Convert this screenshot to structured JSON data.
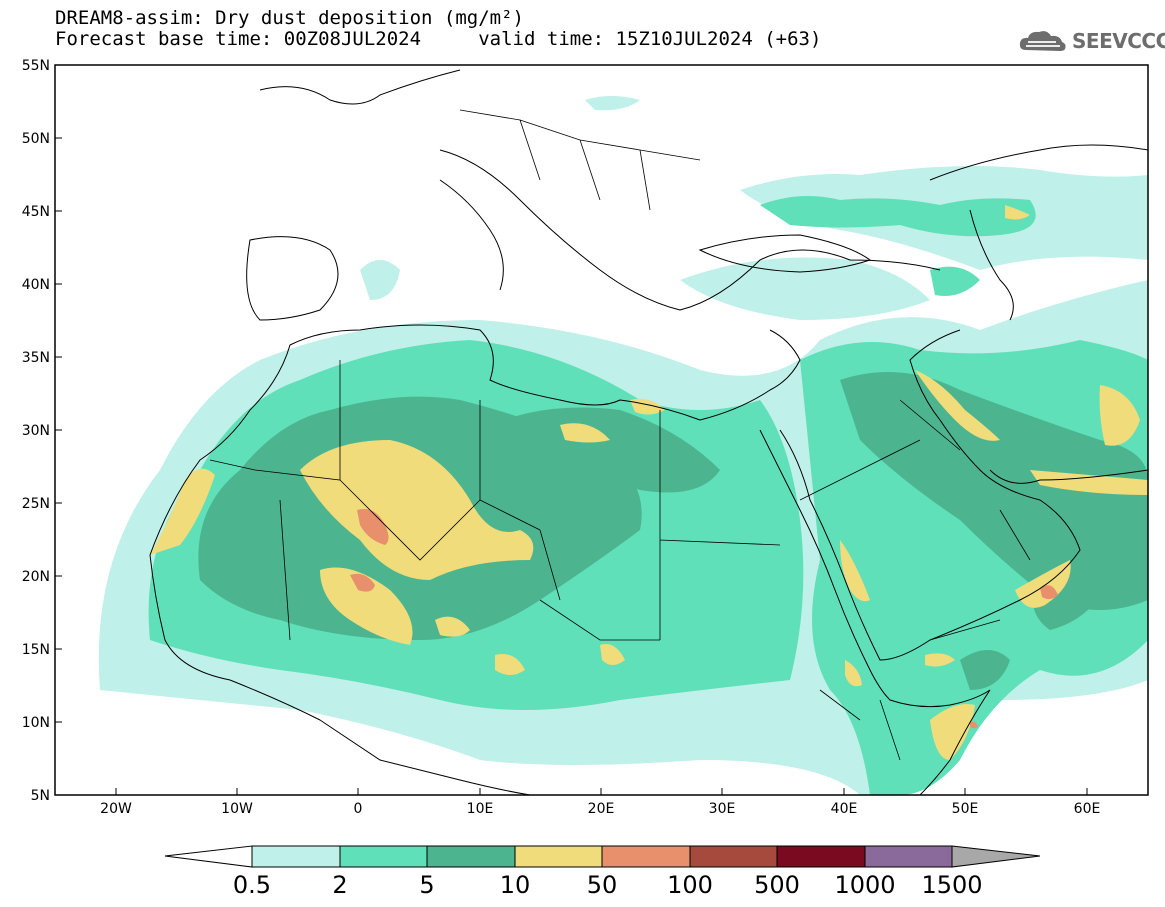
{
  "header": {
    "title_line1": "DREAM8-assim: Dry dust deposition (mg/m²)",
    "title_line2": "Forecast base time: 00Z08JUL2024     valid time: 15Z10JUL2024 (+63)"
  },
  "brand": {
    "name": "SEEVCCC",
    "icon": "cloud-logo-icon"
  },
  "map": {
    "lat_labels": [
      "55N",
      "50N",
      "45N",
      "40N",
      "35N",
      "30N",
      "25N",
      "20N",
      "15N",
      "10N",
      "5N"
    ],
    "lon_labels": [
      "20W",
      "10W",
      "0",
      "10E",
      "20E",
      "30E",
      "40E",
      "50E",
      "60E"
    ],
    "lat_range": [
      5,
      55
    ],
    "lon_range": [
      -25,
      65
    ]
  },
  "legend": {
    "labels": [
      "0.5",
      "2",
      "5",
      "10",
      "50",
      "100",
      "500",
      "1000",
      "1500"
    ],
    "colors": [
      "#ffffff",
      "#bff0e9",
      "#5fe0b8",
      "#4cb58f",
      "#f0dc7a",
      "#e8906b",
      "#a64a3e",
      "#7a0a20",
      "#8a6a9a",
      "#a8a8a8"
    ]
  }
}
